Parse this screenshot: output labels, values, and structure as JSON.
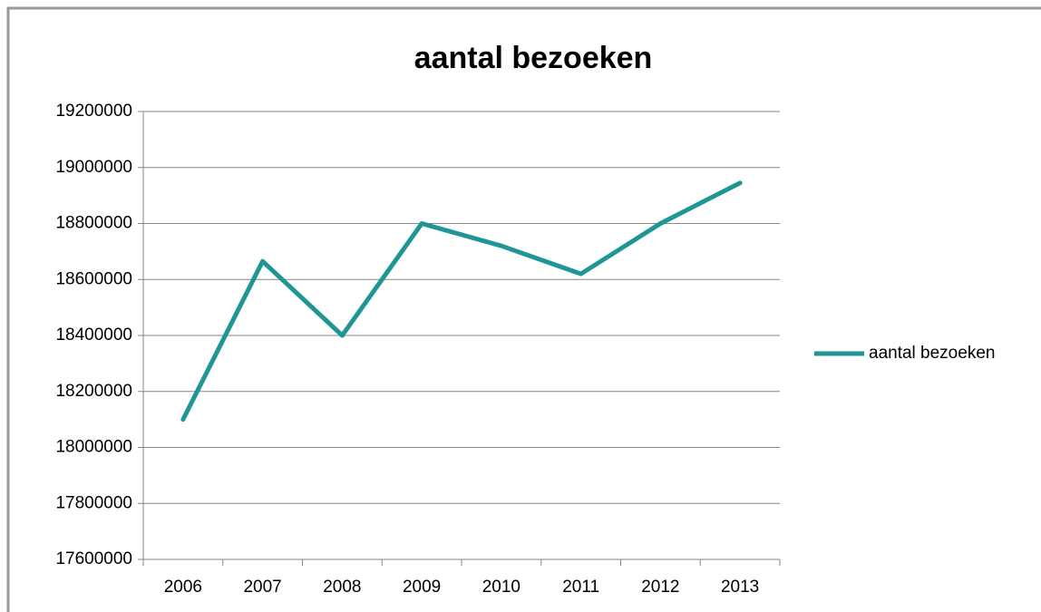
{
  "chart_data": {
    "type": "line",
    "title": "aantal bezoeken",
    "categories": [
      "2006",
      "2007",
      "2008",
      "2009",
      "2010",
      "2011",
      "2012",
      "2013"
    ],
    "series": [
      {
        "name": "aantal bezoeken",
        "color": "#1f9595",
        "values": [
          18100000,
          18665000,
          18400000,
          18800000,
          18720000,
          18620000,
          18800000,
          18945000
        ]
      }
    ],
    "ylim": [
      17600000,
      19200000
    ],
    "yticks": [
      17600000,
      17800000,
      18000000,
      18200000,
      18400000,
      18600000,
      18800000,
      19000000,
      19200000
    ],
    "grid": true,
    "legend": "right"
  }
}
